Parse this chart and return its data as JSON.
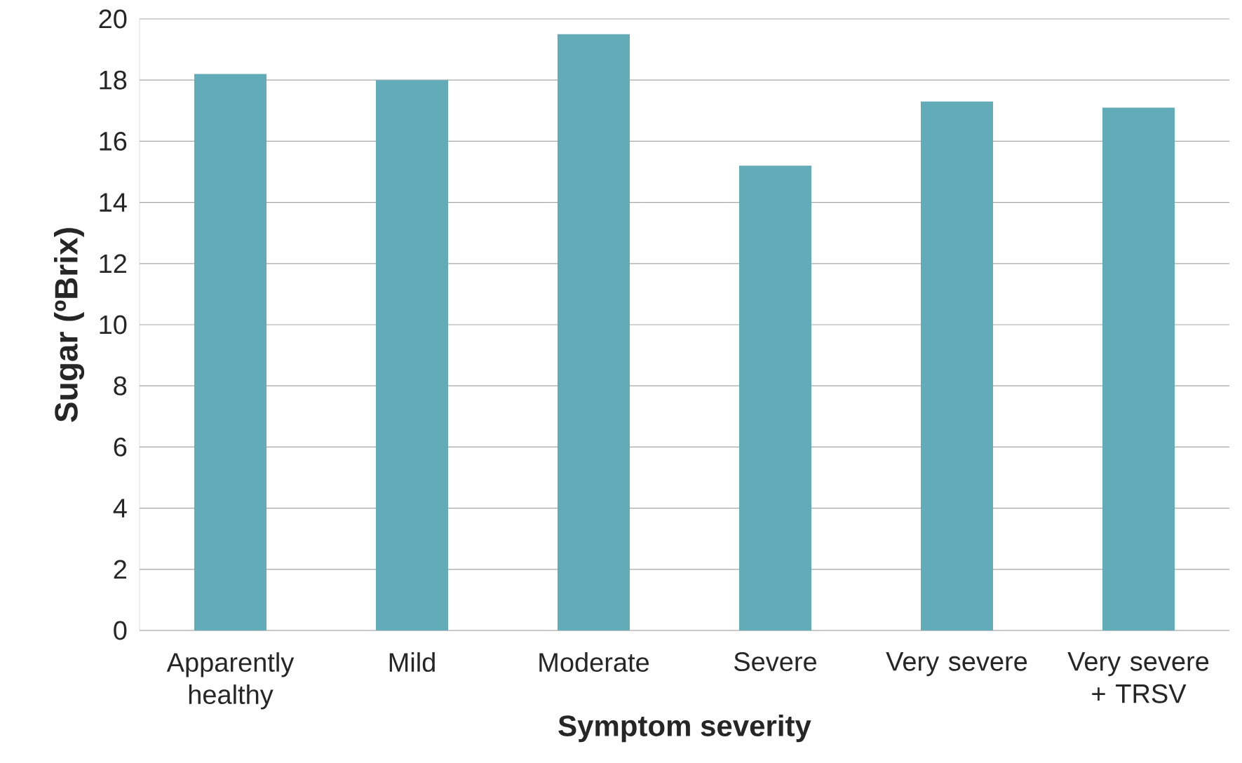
{
  "chart_data": {
    "type": "bar",
    "xlabel": "Symptom severity",
    "ylabel": "Sugar (ºBrix)",
    "categories": [
      "Apparently healthy",
      "Mild",
      "Moderate",
      "Severe",
      "Very severe",
      "Very severe + TRSV"
    ],
    "values": [
      18.2,
      18.0,
      19.5,
      15.2,
      17.3,
      17.1
    ],
    "color": "#62abb9",
    "ylim": [
      0,
      20
    ],
    "yticks": [
      0,
      2,
      4,
      6,
      8,
      10,
      12,
      14,
      16,
      18,
      20
    ],
    "grid": "y"
  }
}
